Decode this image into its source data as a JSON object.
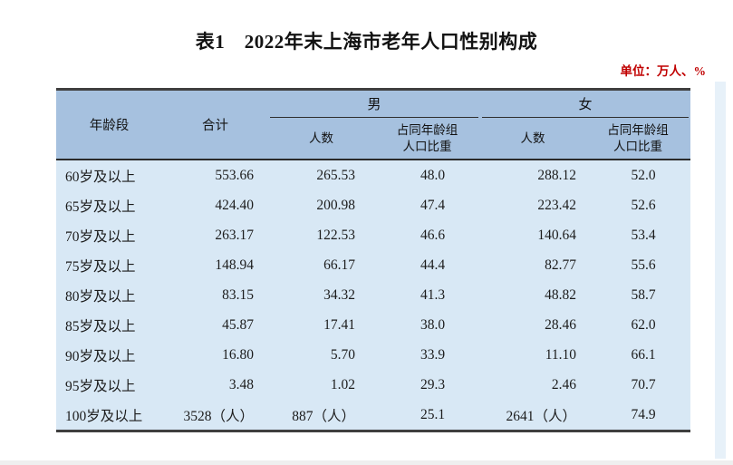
{
  "page": {
    "title": "表1　2022年末上海市老年人口性别构成",
    "unit_note": "单位：万人、%"
  },
  "colors": {
    "header_bg": "#a6c1df",
    "body_bg": "#d8e8f5",
    "unit_text": "#c00000",
    "border_dark": "#3f3f3f"
  },
  "table": {
    "header": {
      "age_group": "年龄段",
      "total": "合计",
      "male": "男",
      "female": "女",
      "count": "人数",
      "share": "占同年龄组\n人口比重"
    },
    "rows": [
      {
        "age": "60岁及以上",
        "total": "553.66",
        "male_count": "265.53",
        "male_share": "48.0",
        "female_count": "288.12",
        "female_share": "52.0"
      },
      {
        "age": "65岁及以上",
        "total": "424.40",
        "male_count": "200.98",
        "male_share": "47.4",
        "female_count": "223.42",
        "female_share": "52.6"
      },
      {
        "age": "70岁及以上",
        "total": "263.17",
        "male_count": "122.53",
        "male_share": "46.6",
        "female_count": "140.64",
        "female_share": "53.4"
      },
      {
        "age": "75岁及以上",
        "total": "148.94",
        "male_count": "66.17",
        "male_share": "44.4",
        "female_count": "82.77",
        "female_share": "55.6"
      },
      {
        "age": "80岁及以上",
        "total": "83.15",
        "male_count": "34.32",
        "male_share": "41.3",
        "female_count": "48.82",
        "female_share": "58.7"
      },
      {
        "age": "85岁及以上",
        "total": "45.87",
        "male_count": "17.41",
        "male_share": "38.0",
        "female_count": "28.46",
        "female_share": "62.0"
      },
      {
        "age": "90岁及以上",
        "total": "16.80",
        "male_count": "5.70",
        "male_share": "33.9",
        "female_count": "11.10",
        "female_share": "66.1"
      },
      {
        "age": "95岁及以上",
        "total": "3.48",
        "male_count": "1.02",
        "male_share": "29.3",
        "female_count": "2.46",
        "female_share": "70.7"
      },
      {
        "age": "100岁及以上",
        "total": "3528（人）",
        "male_count": "887（人）",
        "male_share": "25.1",
        "female_count": "2641（人）",
        "female_share": "74.9"
      }
    ]
  }
}
